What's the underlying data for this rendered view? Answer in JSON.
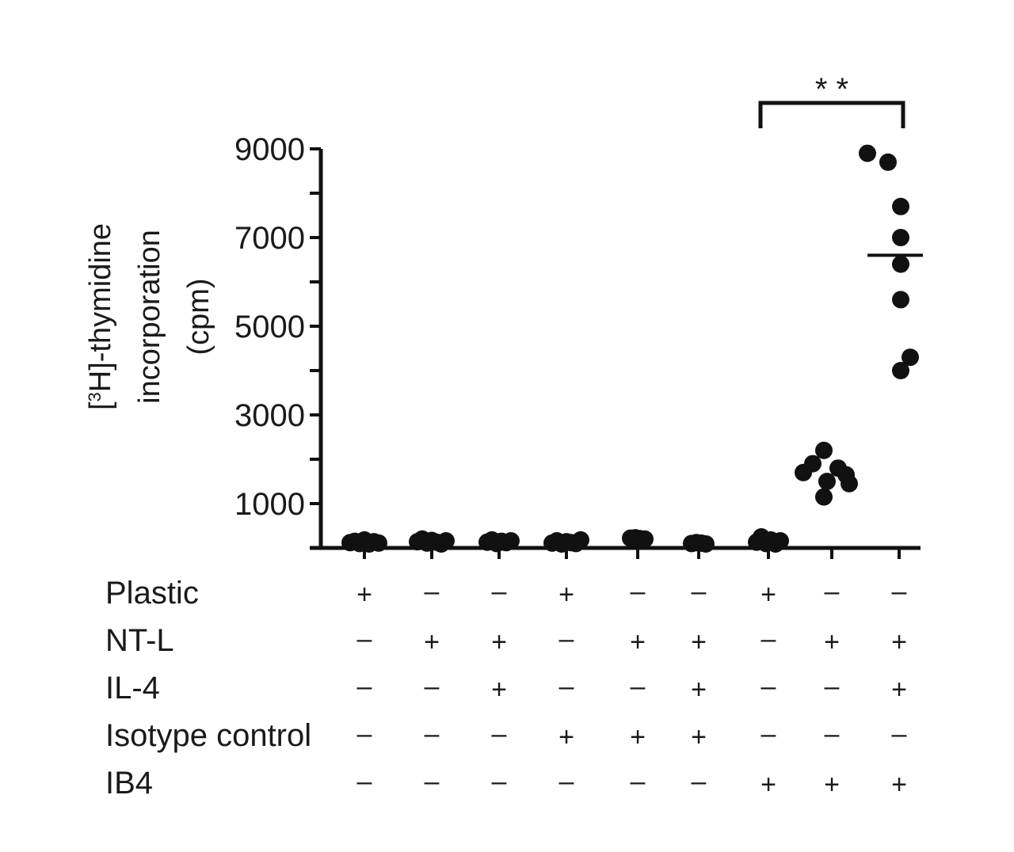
{
  "chart_data": {
    "type": "scatter",
    "ylabel_lines": [
      "[3H]-thymidine",
      "incorporation",
      "(cpm)"
    ],
    "ylim": [
      0,
      9000
    ],
    "y_ticks": [
      1000,
      3000,
      5000,
      7000,
      9000
    ],
    "conditions": [
      {
        "name": "Plastic",
        "signs": [
          "+",
          "–",
          "–",
          "+",
          "–",
          "–",
          "+",
          "–",
          "–"
        ]
      },
      {
        "name": "NT-L",
        "signs": [
          "–",
          "+",
          "+",
          "–",
          "+",
          "+",
          "–",
          "+",
          "+"
        ]
      },
      {
        "name": "IL-4",
        "signs": [
          "–",
          "–",
          "+",
          "–",
          "–",
          "+",
          "–",
          "–",
          "+"
        ]
      },
      {
        "name": "Isotype control",
        "signs": [
          "–",
          "–",
          "–",
          "+",
          "+",
          "+",
          "–",
          "–",
          "–"
        ]
      },
      {
        "name": "IB4",
        "signs": [
          "–",
          "–",
          "–",
          "–",
          "–",
          "–",
          "+",
          "+",
          "+"
        ]
      }
    ],
    "groups": [
      {
        "values": [
          120,
          150,
          100,
          180,
          90,
          140,
          110
        ],
        "mean": null
      },
      {
        "values": [
          140,
          200,
          110,
          170,
          130,
          90,
          160
        ],
        "mean": null
      },
      {
        "values": [
          130,
          180,
          100,
          150,
          120,
          160
        ],
        "mean": null
      },
      {
        "values": [
          110,
          160,
          90,
          140,
          120,
          100,
          180
        ],
        "mean": null
      },
      {
        "values": [
          220,
          230,
          210,
          200
        ],
        "mean": null
      },
      {
        "values": [
          100,
          120,
          110,
          90
        ],
        "mean": null
      },
      {
        "values": [
          130,
          250,
          100,
          180,
          90,
          160
        ],
        "mean": null
      },
      {
        "values": [
          2200,
          1900,
          1800,
          1700,
          1650,
          1500,
          1450,
          1150
        ],
        "mean": null
      },
      {
        "values": [
          8900,
          8700,
          7700,
          7000,
          6400,
          5600,
          4300,
          4000
        ],
        "mean": 6600
      }
    ],
    "significance": {
      "label": "* *",
      "from_group": 7,
      "to_group": 9
    }
  }
}
